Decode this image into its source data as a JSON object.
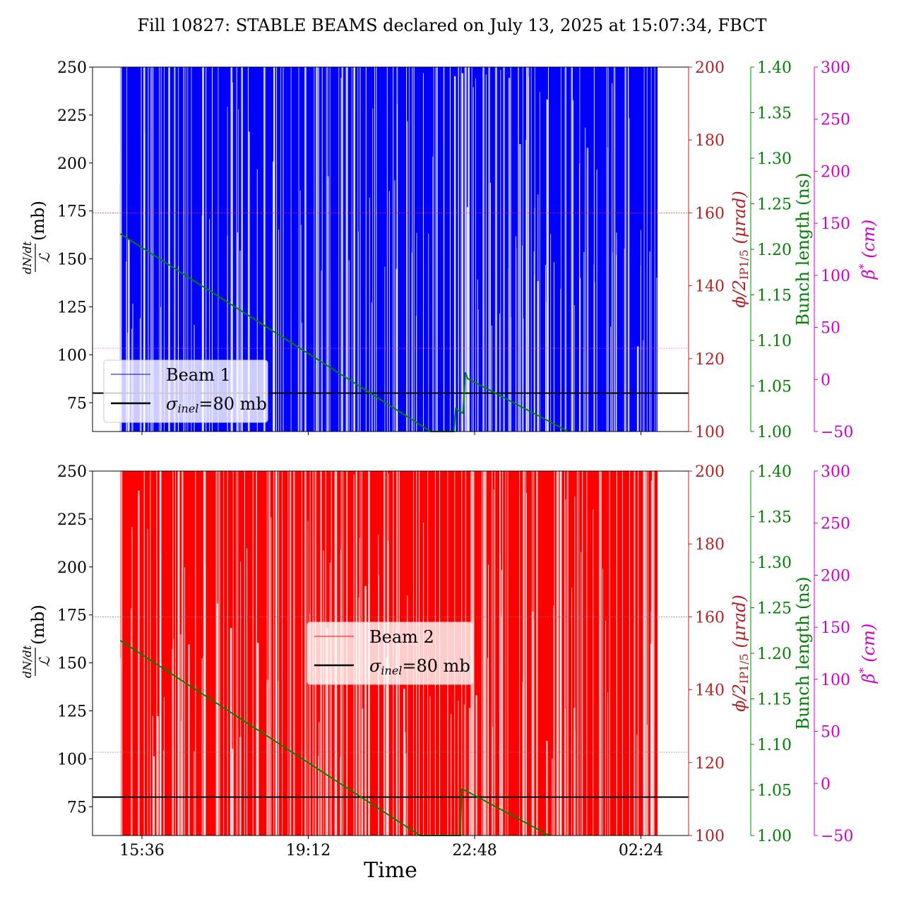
{
  "chart_data": {
    "type": "line",
    "title": "Fill 10827: STABLE BEAMS declared on July 13, 2025 at 15:07:34, FBCT",
    "xlabel": "Time",
    "x_unit": "hours since 00:00 July 13 (values above 24 are July 14)",
    "xlim": [
      14.6,
      27.5
    ],
    "xticks": [
      {
        "v": 15.6,
        "label": "15:36"
      },
      {
        "v": 19.2,
        "label": "19:12"
      },
      {
        "v": 22.8,
        "label": "22:48"
      },
      {
        "v": 26.4,
        "label": "02:24"
      }
    ],
    "axes": {
      "left": {
        "label_num": "dN/dt",
        "label_den": "ℒ",
        "label_unit": "(mb)",
        "ylim": [
          60,
          250
        ],
        "ticks": [
          75,
          100,
          125,
          150,
          175,
          200,
          225,
          250
        ]
      },
      "crossing": {
        "label": "ϕ/2",
        "label_sub": "IP1/5",
        "label_unit": " (μrad)",
        "ylim": [
          100,
          200
        ],
        "ticks": [
          100,
          120,
          140,
          160,
          180,
          200
        ],
        "color": "#b22222"
      },
      "bunch": {
        "label": "Bunch length (ns)",
        "ylim": [
          1.0,
          1.4
        ],
        "ticks": [
          "1.00",
          "1.05",
          "1.10",
          "1.15",
          "1.20",
          "1.25",
          "1.30",
          "1.35",
          "1.40"
        ],
        "color": "#008000"
      },
      "beta": {
        "label": "β",
        "label_sup": "*",
        "label_unit": " (cm)",
        "ylim": [
          -50,
          300
        ],
        "ticks": [
          "−50",
          "0",
          "50",
          "100",
          "150",
          "200",
          "250",
          "300"
        ],
        "color": "#cc00cc"
      }
    },
    "panels": [
      {
        "name": "Beam 1",
        "color": "#0000ff",
        "gap_color": "#c8c8f0",
        "data_range": [
          15.13,
          26.76
        ],
        "sigma_inel": 80,
        "legend": {
          "series": "Beam 1",
          "ref_sym": "σ",
          "ref_sub": "inel",
          "ref_rest": "=80 mb",
          "placement": "lower-left"
        },
        "crossing_angle": 160,
        "beta_star": 30,
        "bunch_length": [
          [
            15.13,
            1.217
          ],
          [
            21.85,
            1.0
          ],
          [
            22.35,
            1.0
          ],
          [
            22.39,
            1.025
          ],
          [
            22.55,
            1.02
          ],
          [
            22.6,
            1.065
          ],
          [
            22.65,
            1.058
          ],
          [
            24.83,
            1.0
          ]
        ]
      },
      {
        "name": "Beam 2",
        "color": "#ff0000",
        "gap_color": "#ffd0d0",
        "data_range": [
          15.13,
          26.76
        ],
        "sigma_inel": 80,
        "legend": {
          "series": "Beam 2",
          "ref_sym": "σ",
          "ref_sub": "inel",
          "ref_rest": "=80 mb",
          "placement": "center"
        },
        "crossing_angle": 160,
        "beta_star": 30,
        "bunch_length": [
          [
            15.13,
            1.214
          ],
          [
            21.62,
            1.0
          ],
          [
            22.49,
            1.0
          ],
          [
            22.52,
            1.051
          ],
          [
            22.58,
            1.05
          ],
          [
            24.42,
            1.0
          ]
        ]
      }
    ]
  }
}
